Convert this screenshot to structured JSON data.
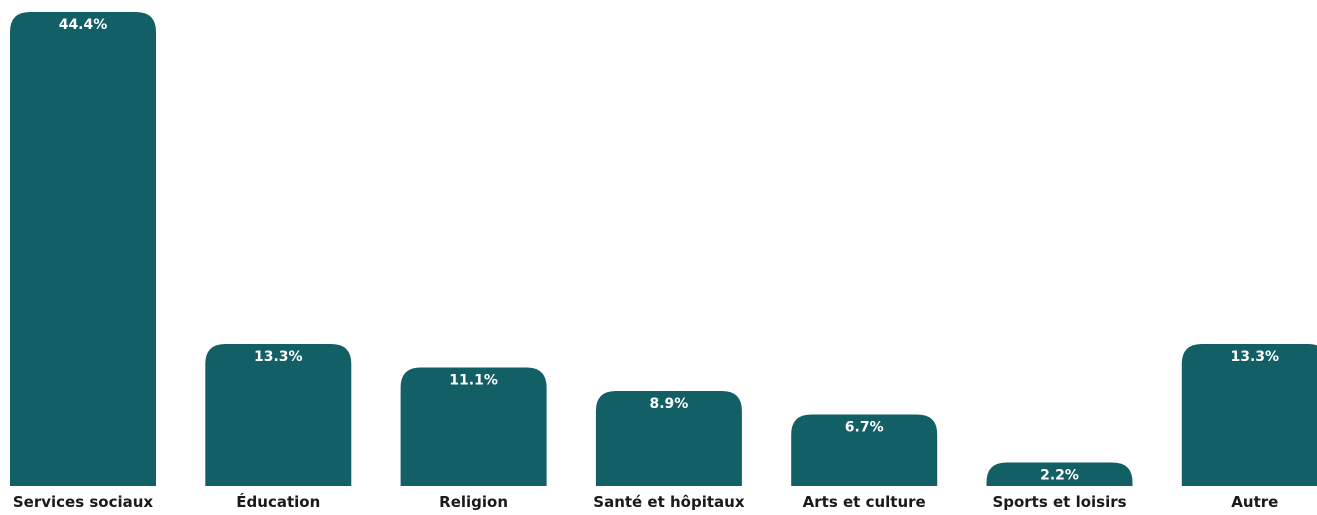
{
  "chart_data": {
    "type": "bar",
    "categories": [
      "Services sociaux",
      "Éducation",
      "Religion",
      "Santé et hôpitaux",
      "Arts et culture",
      "Sports et loisirs",
      "Autre"
    ],
    "values": [
      44.4,
      13.3,
      11.1,
      8.9,
      6.7,
      2.2,
      13.3
    ],
    "data_labels": [
      "44.4%",
      "13.3%",
      "11.1%",
      "8.9%",
      "6.7%",
      "2.2%",
      "13.3%"
    ],
    "title": "",
    "xlabel": "",
    "ylabel": "",
    "ylim": [
      0,
      44.4
    ],
    "grid": false,
    "legend": "none",
    "bar_color": "#125f66"
  }
}
